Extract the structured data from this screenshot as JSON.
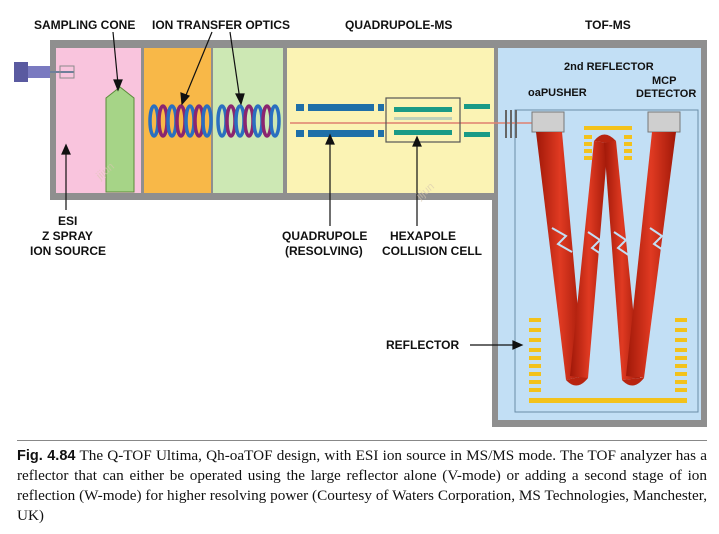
{
  "labels": {
    "sampling_cone": "SAMPLING CONE",
    "ion_transfer_optics": "ION TRANSFER OPTICS",
    "quadrupole_ms": "QUADRUPOLE-MS",
    "tof_ms": "TOF-MS",
    "second_reflector": "2nd REFLECTOR",
    "oapusher": "oaPUSHER",
    "mcp_detector_line1": "MCP",
    "mcp_detector_line2": "DETECTOR",
    "esi_line1": "ESI",
    "esi_line2": "Z SPRAY",
    "esi_line3": "ION SOURCE",
    "quadrupole_line1": "QUADRUPOLE",
    "quadrupole_line2": "(RESOLVING)",
    "hexapole_line1": "HEXAPOLE",
    "hexapole_line2": "COLLISION CELL",
    "reflector": "REFLECTOR"
  },
  "watermark": "jijun",
  "caption": {
    "label": "Fig. 4.84",
    "text": "The Q-TOF Ultima, Qh-oaTOF design, with ESI ion source in MS/MS mode. The TOF analyzer has a reflector that can either be operated using the large reflector alone (V-mode) or adding a second stage of ion reflection (W-mode) for higher resolving power (Courtesy of Waters Corporation, MS Technologies, Manchester, UK)"
  },
  "colors": {
    "housing": "#8f8f8f",
    "esi_region": "#f9c4dd",
    "cone": "#a6d487",
    "optics_1": "#f8b848",
    "optics_2": "#cde8b4",
    "quad_region": "#fbf3b4",
    "tof_region": "#c2dff5",
    "rod": "#1f6fa8",
    "ring_blue": "#2a6fc0",
    "ring_purple": "#8a2570",
    "ion_beam": "#d83018",
    "flight_path": "#d0301c",
    "reflector_plate": "#f3c21b"
  }
}
